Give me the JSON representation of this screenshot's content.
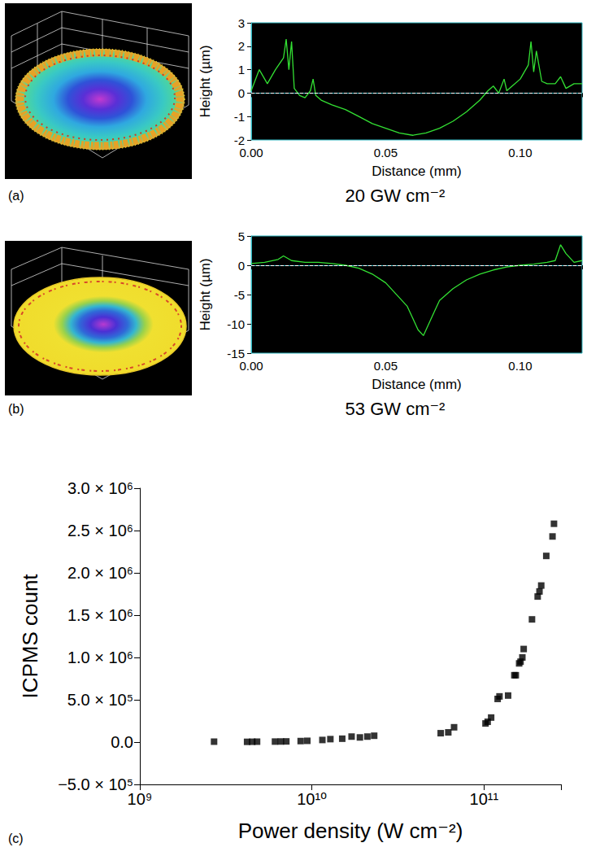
{
  "chart_data": [
    {
      "type": "line",
      "panel": "(a)",
      "title": "20 GW cm⁻²",
      "x_label": "Distance (mm)",
      "y_label": "Height (µm)",
      "x": [
        0,
        0.003,
        0.006,
        0.009,
        0.012,
        0.013,
        0.014,
        0.015,
        0.016,
        0.018,
        0.02,
        0.022,
        0.023,
        0.024,
        0.026,
        0.03,
        0.035,
        0.04,
        0.045,
        0.05,
        0.055,
        0.06,
        0.065,
        0.07,
        0.075,
        0.08,
        0.085,
        0.088,
        0.09,
        0.092,
        0.094,
        0.095,
        0.097,
        0.1,
        0.103,
        0.104,
        0.105,
        0.106,
        0.108,
        0.11,
        0.113,
        0.115,
        0.117,
        0.12,
        0.123
      ],
      "values": [
        0.1,
        1.0,
        0.4,
        1.0,
        1.5,
        2.3,
        1.0,
        2.2,
        0.2,
        -0.1,
        -0.2,
        0.1,
        0.6,
        -0.1,
        -0.3,
        -0.5,
        -0.7,
        -1.0,
        -1.3,
        -1.5,
        -1.7,
        -1.8,
        -1.7,
        -1.5,
        -1.2,
        -0.8,
        -0.3,
        0.1,
        0.3,
        0.0,
        0.6,
        0.1,
        0.3,
        0.6,
        1.2,
        2.2,
        0.9,
        1.8,
        0.5,
        0.4,
        0.4,
        0.7,
        0.2,
        0.4,
        0.4
      ],
      "color": "#33e033",
      "baseline": 0,
      "xlim": [
        0,
        0.123
      ],
      "ylim": [
        -2,
        3
      ],
      "xticks": [
        {
          "value": 0,
          "label": "0.00"
        },
        {
          "value": 0.05,
          "label": "0.05"
        },
        {
          "value": 0.1,
          "label": "0.10"
        }
      ],
      "yticks": [
        -2,
        -1,
        0,
        1,
        2,
        3
      ],
      "grid": false
    },
    {
      "type": "line",
      "panel": "(b)",
      "title": "53 GW cm⁻²",
      "x_label": "Distance (mm)",
      "y_label": "Height (µm)",
      "x": [
        0,
        0.005,
        0.01,
        0.012,
        0.015,
        0.02,
        0.025,
        0.03,
        0.035,
        0.04,
        0.045,
        0.05,
        0.055,
        0.058,
        0.06,
        0.062,
        0.064,
        0.066,
        0.068,
        0.07,
        0.075,
        0.08,
        0.085,
        0.09,
        0.095,
        0.1,
        0.105,
        0.11,
        0.113,
        0.115,
        0.117,
        0.12,
        0.123
      ],
      "values": [
        0.3,
        0.5,
        1.0,
        1.6,
        0.8,
        0.5,
        0.5,
        0.3,
        0,
        -0.5,
        -1.5,
        -3,
        -5.5,
        -7,
        -9,
        -11,
        -12,
        -10,
        -8,
        -6,
        -4,
        -2.5,
        -1.5,
        -0.8,
        -0.3,
        0,
        0.2,
        0.5,
        0.8,
        3.5,
        2,
        0.5,
        0.8
      ],
      "color": "#33e033",
      "baseline": 0,
      "xlim": [
        0,
        0.123
      ],
      "ylim": [
        -15,
        5
      ],
      "xticks": [
        {
          "value": 0,
          "label": "0.00"
        },
        {
          "value": 0.05,
          "label": "0.05"
        },
        {
          "value": 0.1,
          "label": "0.10"
        }
      ],
      "yticks": [
        -15,
        -10,
        -5,
        0,
        5
      ],
      "grid": false
    },
    {
      "type": "scatter",
      "panel": "(c)",
      "x_label": "Power density (W cm⁻²)",
      "y_label": "ICPMS count",
      "x": [
        2700000000,
        4200000000,
        4500000000,
        4800000000,
        6100000000,
        6600000000,
        7100000000,
        8600000000,
        9400000000,
        11500000000,
        12800000000,
        15000000000,
        17000000000,
        19000000000,
        21000000000,
        23000000000,
        56000000000,
        62000000000,
        67000000000,
        102000000000,
        105000000000,
        110000000000,
        120000000000,
        123000000000,
        138000000000,
        150000000000,
        153000000000,
        160000000000,
        163000000000,
        167000000000,
        170000000000,
        190000000000,
        205000000000,
        210000000000,
        215000000000,
        230000000000,
        250000000000,
        255000000000
      ],
      "values": [
        5000,
        3000,
        4000,
        5000,
        6000,
        7000,
        8000,
        12000,
        15000,
        25000,
        35000,
        40000,
        65000,
        55000,
        65000,
        75000,
        105000,
        115000,
        175000,
        220000,
        240000,
        290000,
        510000,
        540000,
        550000,
        790000,
        790000,
        930000,
        950000,
        1000000,
        1100000,
        1450000,
        1720000,
        1780000,
        1850000,
        2200000,
        2430000,
        2580000
      ],
      "color": "#000000",
      "marker": "square",
      "log": "x",
      "xlim": [
        1000000000,
        280000000000
      ],
      "ylim": [
        -500000,
        3000000
      ],
      "xticks": [
        {
          "value": 1000000000,
          "label": "10⁹"
        },
        {
          "value": 10000000000,
          "label": "10¹⁰"
        },
        {
          "value": 100000000000,
          "label": "10¹¹"
        }
      ],
      "yticks": [
        {
          "value": -500000,
          "label": "−5.0 × 10⁵"
        },
        {
          "value": 0,
          "label": "0.0"
        },
        {
          "value": 500000,
          "label": "5.0 × 10⁵"
        },
        {
          "value": 1000000,
          "label": "1.0 × 10⁶"
        },
        {
          "value": 1500000,
          "label": "1.5 × 10⁶"
        },
        {
          "value": 2000000,
          "label": "2.0 × 10⁶"
        },
        {
          "value": 2500000,
          "label": "2.5 × 10⁶"
        },
        {
          "value": 3000000,
          "label": "3.0 × 10⁶"
        }
      ],
      "grid": false
    }
  ]
}
